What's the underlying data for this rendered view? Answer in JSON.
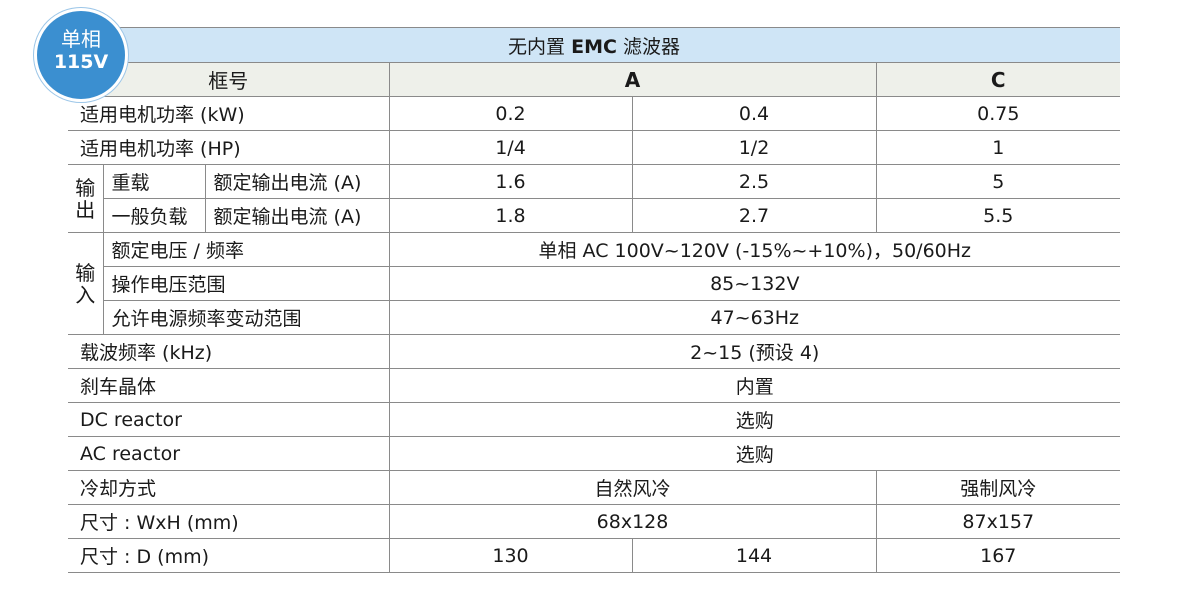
{
  "badge": {
    "line1": "单相",
    "line2": "115V"
  },
  "title": {
    "prefix": "无内置",
    "emc": "EMC",
    "suffix": "滤波器"
  },
  "header": {
    "frame_label": "框号",
    "col_a": "A",
    "col_c": "C"
  },
  "rows": {
    "motor_kw": {
      "label": "适用电机功率 (kW)",
      "v1": "0.2",
      "v2": "0.4",
      "v3": "0.75"
    },
    "motor_hp": {
      "label": "适用电机功率 (HP)",
      "v1": "1/4",
      "v2": "1/2",
      "v3": "1"
    },
    "output": {
      "group_label_1": "输",
      "group_label_2": "出",
      "heavy": {
        "sub": "重载",
        "label": "额定输出电流 (A)",
        "v1": "1.6",
        "v2": "2.5",
        "v3": "5"
      },
      "normal": {
        "sub": "一般负载",
        "label": "额定输出电流 (A)",
        "v1": "1.8",
        "v2": "2.7",
        "v3": "5.5"
      }
    },
    "input": {
      "group_label_1": "输",
      "group_label_2": "入",
      "rated": {
        "label": "额定电压 / 频率",
        "value": "单相 AC 100V~120V (-15%~+10%)，50/60Hz"
      },
      "operating": {
        "label": "操作电压范围",
        "value": "85~132V"
      },
      "freq_range": {
        "label": "允许电源频率变动范围",
        "value": "47~63Hz"
      }
    },
    "carrier": {
      "label": "载波频率 (kHz)",
      "value": "2~15 (预设 4)"
    },
    "brake": {
      "label": "刹车晶体",
      "value": "内置"
    },
    "dc_reactor": {
      "label": "DC reactor",
      "value": "选购"
    },
    "ac_reactor": {
      "label": "AC reactor",
      "value": "选购"
    },
    "cooling": {
      "label": "冷却方式",
      "v_ab": "自然风冷",
      "v_c": "强制风冷"
    },
    "size_wh": {
      "label": "尺寸 : WxH (mm)",
      "v_ab": "68x128",
      "v_c": "87x157"
    },
    "size_d": {
      "label": "尺寸 : D (mm)",
      "v1": "130",
      "v2": "144",
      "v3": "167"
    }
  },
  "colors": {
    "badge_blue": "#3b8fd0",
    "title_bg": "#cfe5f6",
    "header_bg": "#eef0ea",
    "border": "#8a8a8a"
  }
}
